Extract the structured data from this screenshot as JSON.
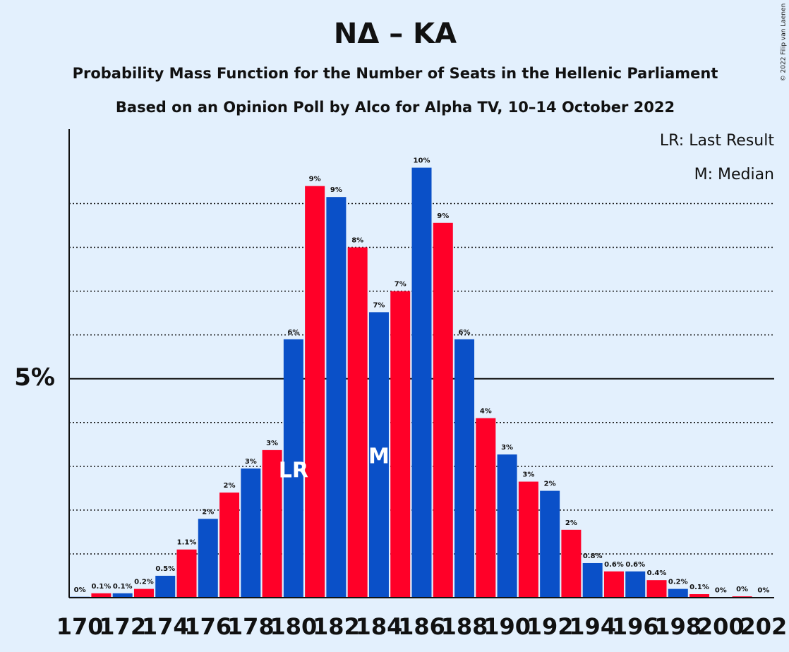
{
  "chart_data": {
    "type": "bar",
    "title": "NΔ – KA",
    "subtitle": "Probability Mass Function for the Number of Seats in the Hellenic Parliament",
    "subtitle2": "Based on an Opinion Poll by Alco for Alpha TV, 10–14 October 2022",
    "copyright": "© 2022 Filip van Laenen",
    "legend_notes": [
      "LR: Last Result",
      "M: Median"
    ],
    "markers": [
      {
        "label": "LR",
        "at": "180"
      },
      {
        "label": "M",
        "at": "184"
      }
    ],
    "categories": [
      "170",
      null,
      "172",
      null,
      "174",
      null,
      "176",
      null,
      "178",
      null,
      "180",
      null,
      "182",
      null,
      "184",
      null,
      "186",
      null,
      "188",
      null,
      "190",
      null,
      "192",
      null,
      "194",
      null,
      "196",
      null,
      "198",
      null,
      "200",
      null,
      "202"
    ],
    "values": [
      0.02,
      0.1,
      0.1,
      0.2,
      0.5,
      1.1,
      1.8,
      2.4,
      2.95,
      3.37,
      5.9,
      9.4,
      9.15,
      8.0,
      6.52,
      7.0,
      9.82,
      8.56,
      5.9,
      4.1,
      3.27,
      2.65,
      2.44,
      1.55,
      0.79,
      0.6,
      0.6,
      0.4,
      0.2,
      0.08,
      0.01,
      0.03,
      0.01
    ],
    "value_labels": [
      "0%",
      "0.1%",
      "0.1%",
      "0.2%",
      "0.5%",
      "1.1%",
      "2%",
      "2%",
      "3%",
      "3%",
      "6%",
      "9%",
      "9%",
      "8%",
      "7%",
      "7%",
      "10%",
      "9%",
      "6%",
      "4%",
      "3%",
      "3%",
      "2%",
      "2%",
      "0.8%",
      "0.6%",
      "0.6%",
      "0.4%",
      "0.2%",
      "0.1%",
      "0%",
      "0%",
      "0%"
    ],
    "colors": [
      "#0a50c8",
      "#ff0028",
      "#0a50c8",
      "#ff0028",
      "#0a50c8",
      "#ff0028",
      "#0a50c8",
      "#ff0028",
      "#0a50c8",
      "#ff0028",
      "#0a50c8",
      "#ff0028",
      "#0a50c8",
      "#ff0028",
      "#0a50c8",
      "#ff0028",
      "#0a50c8",
      "#ff0028",
      "#0a50c8",
      "#ff0028",
      "#0a50c8",
      "#ff0028",
      "#0a50c8",
      "#ff0028",
      "#0a50c8",
      "#ff0028",
      "#0a50c8",
      "#ff0028",
      "#0a50c8",
      "#ff0028",
      "#0a50c8",
      "#ff0028",
      "#0a50c8"
    ],
    "ylim": [
      0,
      10.7
    ],
    "yticks": [
      {
        "value": 5,
        "label": "5%"
      }
    ],
    "minor_yticks": [
      1,
      2,
      3,
      4,
      6,
      7,
      8,
      9
    ],
    "grid": true
  }
}
